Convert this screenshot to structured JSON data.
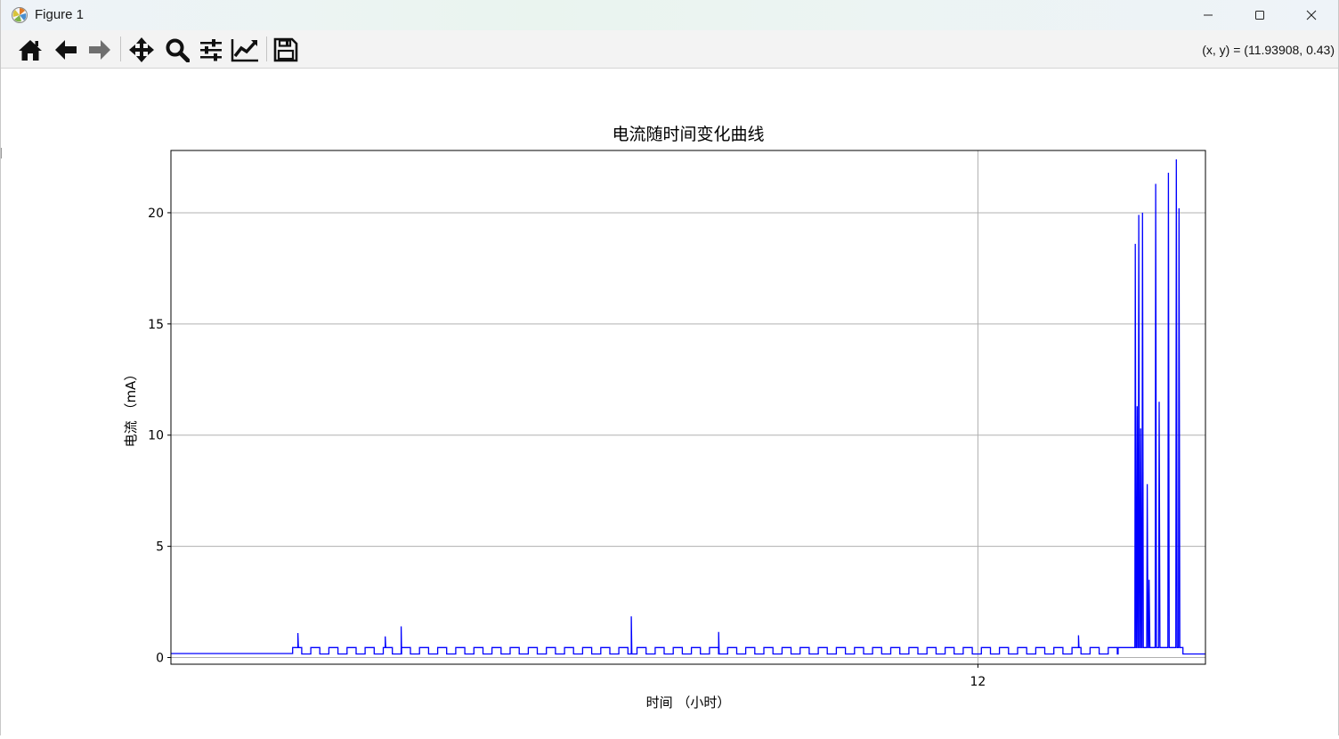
{
  "window": {
    "title": "Figure 1",
    "icons": {
      "app": "matplotlib-icon",
      "minimize": "minimize-icon",
      "maximize": "maximize-icon",
      "close": "close-icon"
    }
  },
  "toolbar": {
    "tools": [
      {
        "name": "home",
        "icon": "home-icon"
      },
      {
        "name": "back",
        "icon": "arrow-left-icon"
      },
      {
        "name": "forward",
        "icon": "arrow-right-icon"
      },
      {
        "name": "pan",
        "icon": "move-icon"
      },
      {
        "name": "zoom",
        "icon": "magnifier-icon"
      },
      {
        "name": "subplots",
        "icon": "sliders-icon"
      },
      {
        "name": "edit-axis",
        "icon": "line-chart-icon"
      },
      {
        "name": "save",
        "icon": "floppy-disk-icon"
      }
    ],
    "coordinates": "(x, y) = (11.93908, 0.43)"
  },
  "chart_data": {
    "type": "line",
    "title": "电流随时间变化曲线",
    "xlabel": "时间 （小时）",
    "ylabel": "电流 （mA）",
    "x_ticks": [
      12
    ],
    "y_ticks": [
      0,
      5,
      10,
      15,
      20
    ],
    "xlim": [
      8.95,
      12.86
    ],
    "ylim": [
      -0.3,
      22.8
    ],
    "grid": true,
    "line_color": "#0000ff",
    "series": [
      {
        "baseline": {
          "low": 0.16,
          "high": 0.45,
          "idle_level": 0.18,
          "idle_until": 9.41,
          "pulse_period": 0.0685,
          "pulse_duty": 0.5,
          "pulses_end": 12.53
        },
        "spikes": [
          {
            "x": 9.43,
            "y": 1.1
          },
          {
            "x": 9.76,
            "y": 0.95
          },
          {
            "x": 9.82,
            "y": 1.4
          },
          {
            "x": 10.69,
            "y": 1.85
          },
          {
            "x": 11.02,
            "y": 1.15
          },
          {
            "x": 12.38,
            "y": 1.0
          }
        ],
        "bursts": [
          {
            "x": 12.595,
            "y": 18.6
          },
          {
            "x": 12.602,
            "y": 11.3
          },
          {
            "x": 12.608,
            "y": 19.9
          },
          {
            "x": 12.615,
            "y": 10.3
          },
          {
            "x": 12.622,
            "y": 20.0
          },
          {
            "x": 12.64,
            "y": 7.8
          },
          {
            "x": 12.647,
            "y": 3.5
          },
          {
            "x": 12.672,
            "y": 21.3
          },
          {
            "x": 12.685,
            "y": 11.5
          },
          {
            "x": 12.72,
            "y": 21.8
          },
          {
            "x": 12.75,
            "y": 22.4
          },
          {
            "x": 12.76,
            "y": 20.2
          }
        ],
        "tail_level": 0.16
      }
    ]
  }
}
